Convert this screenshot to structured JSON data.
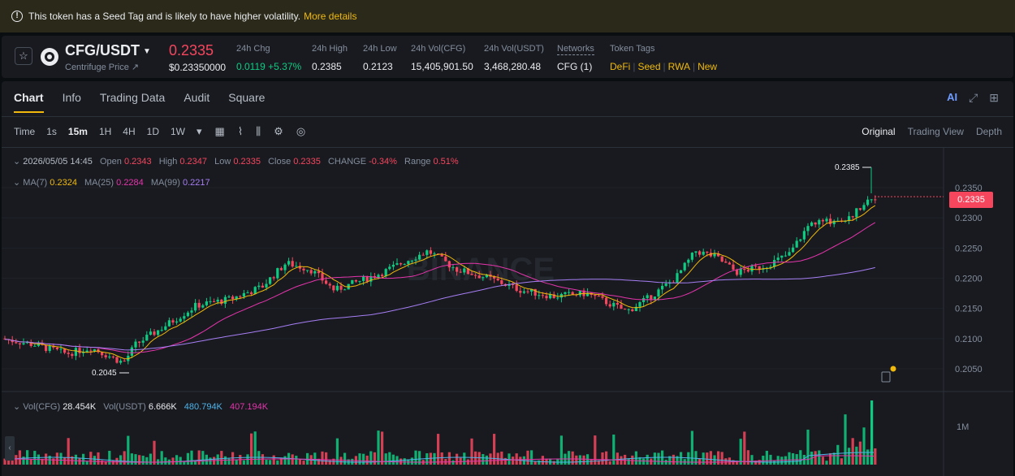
{
  "banner": {
    "text": "This token has a Seed Tag and is likely to have higher volatility.",
    "link": "More details"
  },
  "ticker": {
    "pair": "CFG/USDT",
    "subtitle": "Centrifuge Price ↗",
    "last_price": "0.2335",
    "usd_price": "$0.23350000",
    "stats": [
      {
        "label": "24h Chg",
        "value": "0.0119 +5.37%"
      },
      {
        "label": "24h High",
        "value": "0.2385"
      },
      {
        "label": "24h Low",
        "value": "0.2123"
      },
      {
        "label": "24h Vol(CFG)",
        "value": "15,405,901.50"
      },
      {
        "label": "24h Vol(USDT)",
        "value": "3,468,280.48"
      },
      {
        "label": "Networks",
        "value": "CFG (1)"
      }
    ],
    "token_tags_label": "Token Tags",
    "tags": [
      "DeFi",
      "Seed",
      "RWA",
      "New"
    ]
  },
  "tabs": [
    "Chart",
    "Info",
    "Trading Data",
    "Audit",
    "Square"
  ],
  "toolbar": {
    "timeframes": [
      "Time",
      "1s",
      "15m",
      "1H",
      "4H",
      "1D",
      "1W"
    ],
    "active": "15m"
  },
  "views": [
    "Original",
    "Trading View",
    "Depth"
  ],
  "ohlc": {
    "date": "2026/05/05 14:45",
    "open_label": "Open",
    "open": "0.2343",
    "high_label": "High",
    "high": "0.2347",
    "low_label": "Low",
    "low": "0.2335",
    "close_label": "Close",
    "close": "0.2335",
    "change_label": "CHANGE",
    "change": "-0.34%",
    "range_label": "Range",
    "range": "0.51%"
  },
  "ma": [
    {
      "label": "MA(7)",
      "value": "0.2324",
      "color": "#f0b90b"
    },
    {
      "label": "MA(25)",
      "value": "0.2284",
      "color": "#e535ab"
    },
    {
      "label": "MA(99)",
      "value": "0.2217",
      "color": "#a67ef3"
    }
  ],
  "volume": {
    "cfg_label": "Vol(CFG)",
    "cfg_value": "28.454K",
    "usdt_label": "Vol(USDT)",
    "usdt_value": "6.666K",
    "ma1": "480.794K",
    "ma2": "407.194K",
    "axis_label": "1M"
  },
  "price_axis": [
    "0.2350",
    "0.2300",
    "0.2250",
    "0.2200",
    "0.2150",
    "0.2100",
    "0.2050"
  ],
  "current_price_tag": "0.2335",
  "high_marker": "0.2385",
  "low_marker": "0.2045",
  "watermark": "BINANCE",
  "colors": {
    "up": "#0ecb81",
    "down": "#f6465d",
    "accent": "#f0b90b",
    "bg": "#181a20"
  }
}
